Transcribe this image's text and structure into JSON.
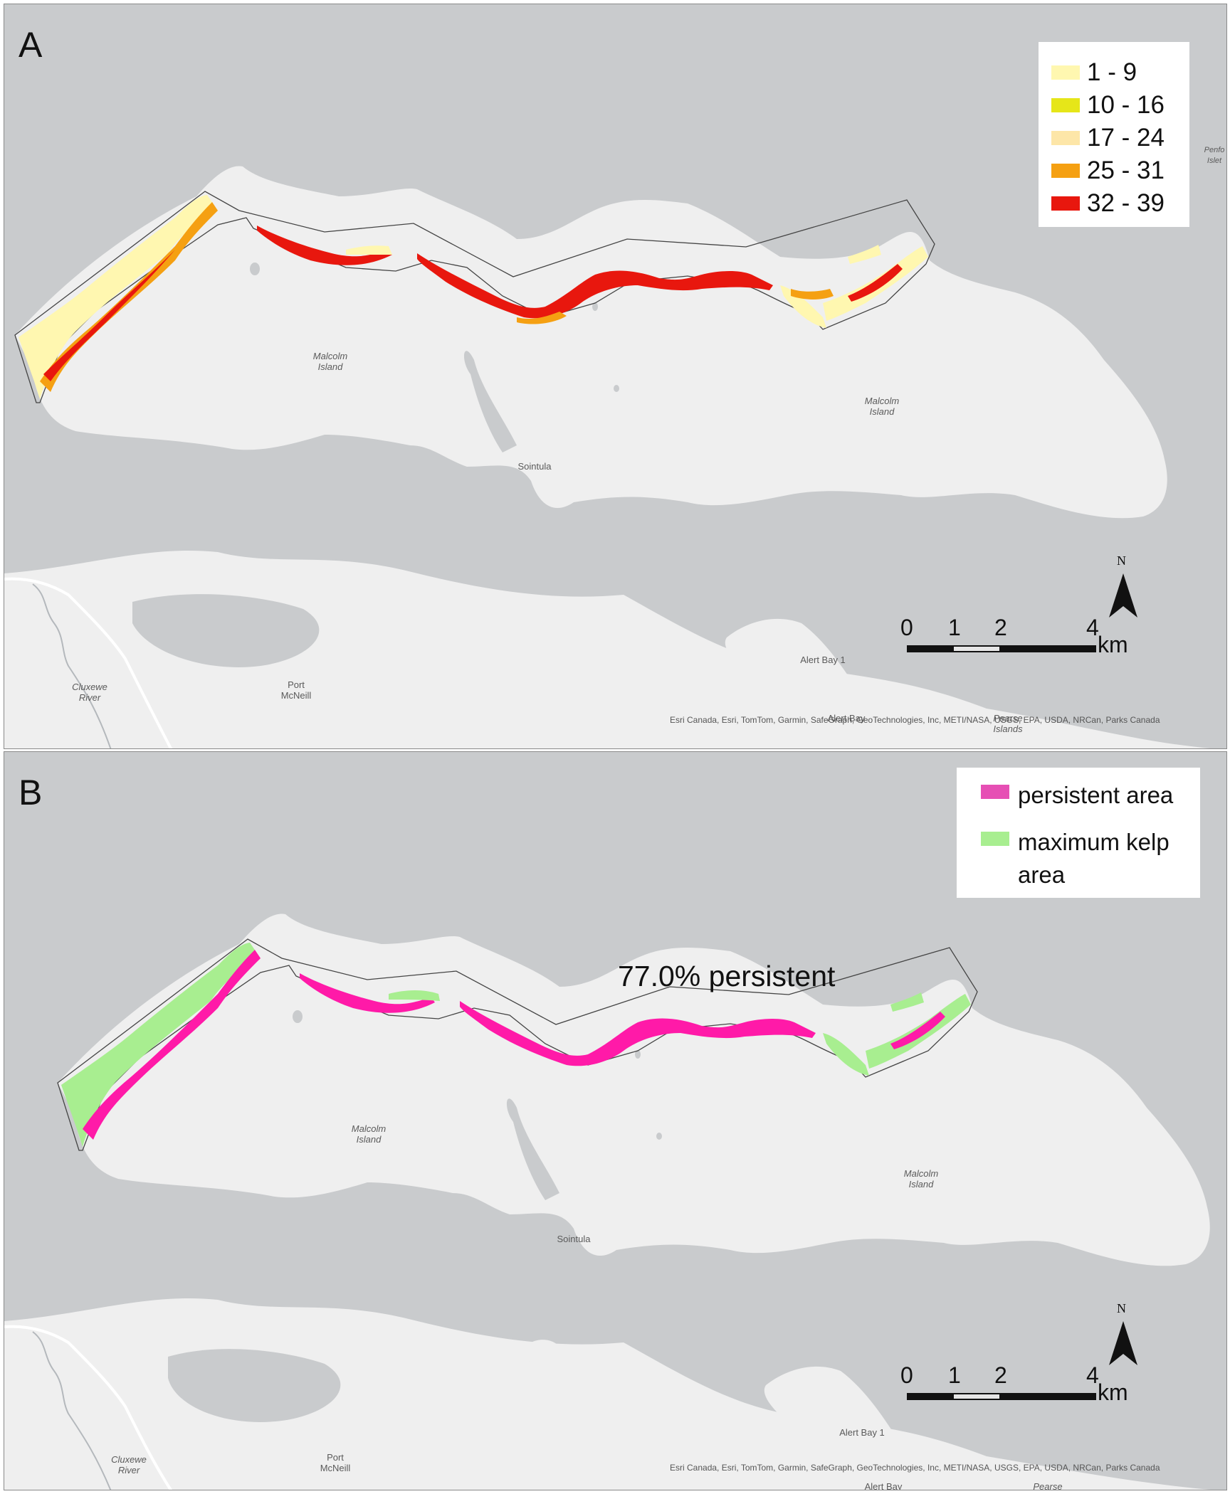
{
  "panel_a": {
    "letter": "A",
    "legend": [
      {
        "label": "1 - 9",
        "color": "#fff7b0"
      },
      {
        "label": "10 - 16",
        "color": "#e6e619"
      },
      {
        "label": "17 - 24",
        "color": "#fde6a8"
      },
      {
        "label": "25 - 31",
        "color": "#f5a012"
      },
      {
        "label": "32 - 39",
        "color": "#e8170e"
      }
    ]
  },
  "panel_b": {
    "letter": "B",
    "legend": [
      {
        "label": "persistent area",
        "color": "#e64fb4"
      },
      {
        "label": "maximum kelp area",
        "color": "#a8ee90"
      }
    ],
    "persistent_text": "77.0% persistent"
  },
  "places": {
    "malcolm_island": "Malcolm Island",
    "sointula": "Sointula",
    "alert_bay_1": "Alert Bay 1",
    "alert_bay": "Alert Bay",
    "port_mcneill": "Port McNeill",
    "cluxewe_river": "Cluxewe River",
    "pearse_islands": "Pearse Islands",
    "penfold_islets": "Penfo Islet"
  },
  "scale_bar": {
    "ticks": [
      "0",
      "1",
      "2",
      "4"
    ],
    "unit": "km",
    "north": "N"
  },
  "attribution": "Esri Canada, Esri, TomTom, Garmin, SafeGraph, GeoTechnologies, Inc, METI/NASA, USGS, EPA, USDA, NRCan, Parks Canada",
  "colors": {
    "water": "#c9cbcd",
    "land": "#efefef",
    "persistent": "#ff1aa8",
    "maximum": "#a8ee90"
  }
}
